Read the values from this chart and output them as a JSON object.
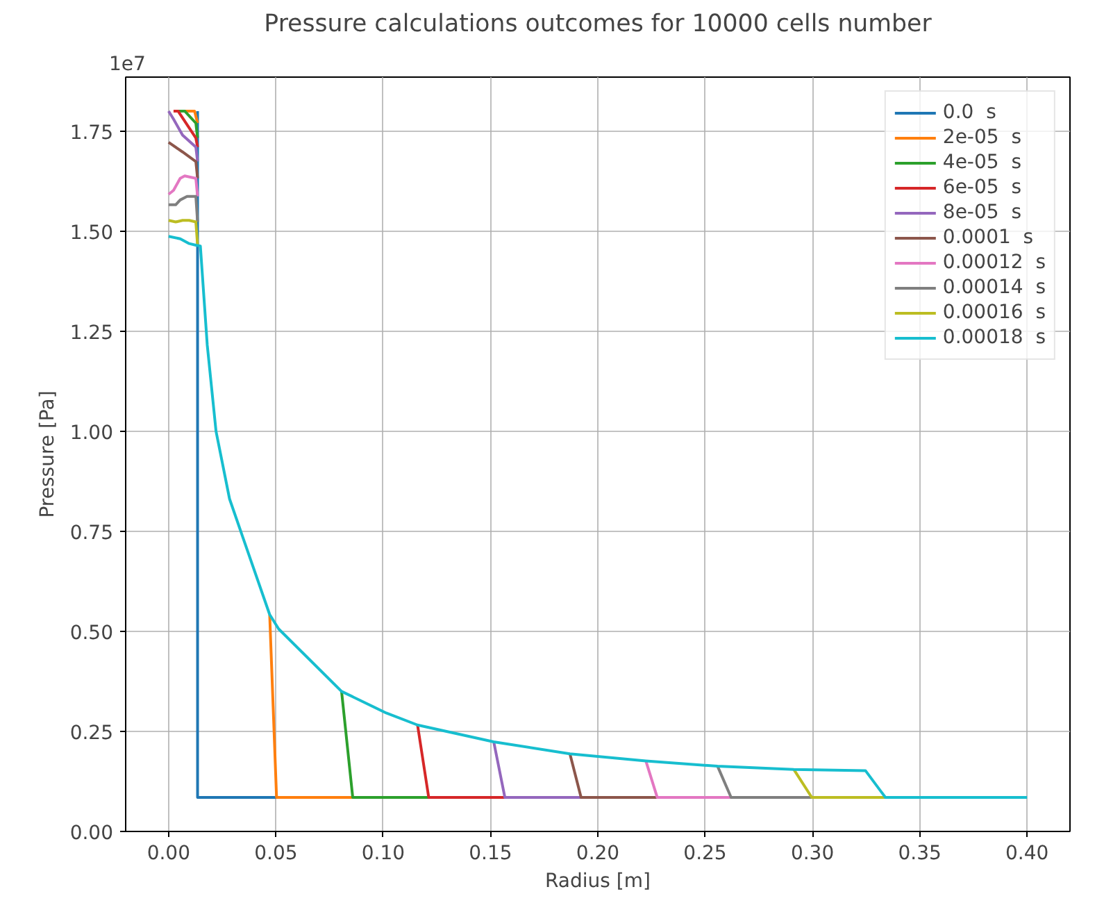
{
  "chart_data": {
    "type": "line",
    "title": "Pressure calculations outcomes for 10000 cells number",
    "xlabel": "Radius [m]",
    "ylabel": "Pressure [Pa]",
    "annotations": [
      "1e7"
    ],
    "xlim": [
      -0.02,
      0.42
    ],
    "ylim": [
      0,
      1.885
    ],
    "xticks": [
      {
        "value": 0,
        "label": "0.00"
      },
      {
        "value": 0.05,
        "label": "0.05"
      },
      {
        "value": 0.1,
        "label": "0.10"
      },
      {
        "value": 0.15,
        "label": "0.15"
      },
      {
        "value": 0.2,
        "label": "0.20"
      },
      {
        "value": 0.25,
        "label": "0.25"
      },
      {
        "value": 0.3,
        "label": "0.30"
      },
      {
        "value": 0.35,
        "label": "0.35"
      },
      {
        "value": 0.4,
        "label": "0.40"
      }
    ],
    "yticks": [
      {
        "value": 0,
        "label": "0.00"
      },
      {
        "value": 0.25,
        "label": "0.25"
      },
      {
        "value": 0.5,
        "label": "0.50"
      },
      {
        "value": 0.75,
        "label": "0.75"
      },
      {
        "value": 1.0,
        "label": "1.00"
      },
      {
        "value": 1.25,
        "label": "1.25"
      },
      {
        "value": 1.5,
        "label": "1.50"
      },
      {
        "value": 1.75,
        "label": "1.75"
      }
    ],
    "grid": true,
    "legend": "top right",
    "line_style": "solid",
    "series": [
      {
        "name": "0.0  s",
        "color": "#1f77b4",
        "x": [
          0.0135,
          0.0135,
          0.0503
        ],
        "values": [
          1.8,
          0.085,
          0.085
        ]
      },
      {
        "color": "#ff7f0e",
        "x": [
          0.0075,
          0.0121,
          0.0135
        ],
        "values": [
          1.8,
          1.8,
          1.77
        ]
      },
      {
        "name": "2e-05  s",
        "color": "#ff7f0e",
        "x": [
          0.0471,
          0.0503,
          0.0858
        ],
        "values": [
          0.542,
          0.085,
          0.085
        ]
      },
      {
        "color": "#2ca02c",
        "x": [
          0.0044,
          0.0075,
          0.0127,
          0.0135
        ],
        "values": [
          1.8,
          1.8,
          1.77,
          1.733
        ]
      },
      {
        "name": "4e-05  s",
        "color": "#2ca02c",
        "x": [
          0.0806,
          0.0858,
          0.1212
        ],
        "values": [
          0.35,
          0.085,
          0.085
        ]
      },
      {
        "color": "#d62728",
        "x": [
          0.0023,
          0.0044,
          0.0127,
          0.0135
        ],
        "values": [
          1.8,
          1.8,
          1.733,
          1.71
        ]
      },
      {
        "name": "6e-05  s",
        "color": "#d62728",
        "x": [
          0.116,
          0.1212,
          0.1567
        ],
        "values": [
          0.266,
          0.085,
          0.085
        ]
      },
      {
        "color": "#9467bd",
        "x": [
          0,
          0.0023,
          0.0065,
          0.0127,
          0.0135
        ],
        "values": [
          1.8,
          1.78,
          1.74,
          1.71,
          1.674
        ]
      },
      {
        "name": "8e-05  s",
        "color": "#9467bd",
        "x": [
          0.1515,
          0.1567,
          0.1922
        ],
        "values": [
          0.224,
          0.085,
          0.085
        ]
      },
      {
        "color": "#8c564b",
        "x": [
          0,
          0.0065,
          0.0127,
          0.0135
        ],
        "values": [
          1.722,
          1.698,
          1.674,
          1.632
        ]
      },
      {
        "name": "0.0001  s",
        "color": "#8c564b",
        "x": [
          0.187,
          0.1922,
          0.2277
        ],
        "values": [
          0.194,
          0.085,
          0.085
        ]
      },
      {
        "color": "#e377c2",
        "x": [
          0,
          0.0023,
          0.0054,
          0.0075,
          0.0127,
          0.0135
        ],
        "values": [
          1.592,
          1.602,
          1.632,
          1.638,
          1.632,
          1.587
        ]
      },
      {
        "name": "0.00012  s",
        "color": "#e377c2",
        "x": [
          0.2224,
          0.2277,
          0.2621
        ],
        "values": [
          0.176,
          0.085,
          0.085
        ]
      },
      {
        "color": "#7f7f7f",
        "x": [
          0,
          0.0033,
          0.0054,
          0.0086,
          0.0127,
          0.0135
        ],
        "values": [
          1.566,
          1.566,
          1.578,
          1.587,
          1.587,
          1.523
        ]
      },
      {
        "name": "0.00014  s",
        "color": "#7f7f7f",
        "x": [
          0.2558,
          0.2621,
          0.2997
        ],
        "values": [
          0.163,
          0.085,
          0.085
        ]
      },
      {
        "color": "#bcbd22",
        "x": [
          0,
          0.0033,
          0.0065,
          0.0096,
          0.0127,
          0.0135
        ],
        "values": [
          1.527,
          1.523,
          1.527,
          1.527,
          1.523,
          1.465
        ]
      },
      {
        "name": "0.00016  s",
        "color": "#bcbd22",
        "x": [
          0.2913,
          0.2997,
          0.334
        ],
        "values": [
          0.155,
          0.085,
          0.085
        ]
      },
      {
        "name": "0.00018  s",
        "color": "#17becf",
        "x": [
          0,
          0.0054,
          0.0096,
          0.0127,
          0.0148,
          0.018,
          0.0221,
          0.0284,
          0.0346,
          0.0471,
          0.0513,
          0.0806,
          0.1014,
          0.116,
          0.1515,
          0.187,
          0.2224,
          0.2558,
          0.2913,
          0.3247,
          0.334,
          0.4
        ],
        "values": [
          1.487,
          1.481,
          1.469,
          1.465,
          1.463,
          1.216,
          1.0,
          0.831,
          0.735,
          0.542,
          0.506,
          0.35,
          0.296,
          0.266,
          0.224,
          0.194,
          0.176,
          0.163,
          0.155,
          0.152,
          0.085,
          0.085
        ]
      }
    ]
  }
}
